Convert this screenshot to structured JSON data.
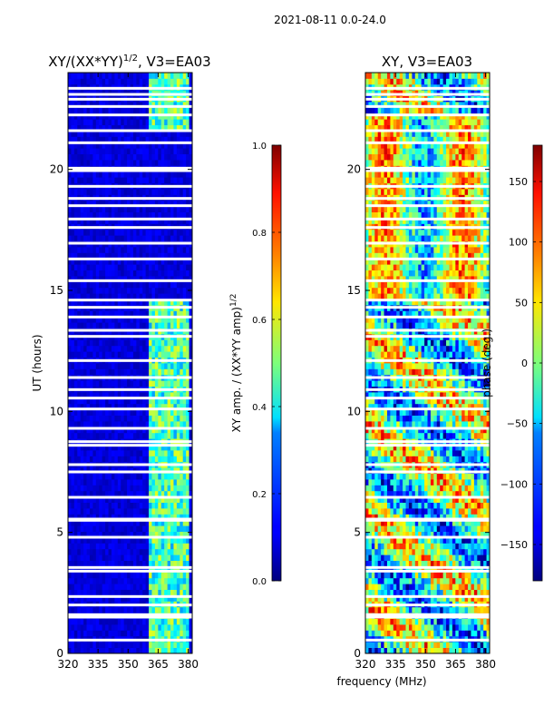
{
  "suptitle": "2021-08-11 0.0-24.0",
  "chart_data": [
    {
      "type": "heatmap",
      "title_prefix": "XY/(XX*YY)",
      "title_exp": "1/2",
      "title_suffix": ", V3=EA03",
      "xlabel": "",
      "ylabel": "UT (hours)",
      "xlim": [
        320,
        382
      ],
      "ylim": [
        0,
        24
      ],
      "xticks": [
        "320",
        "335",
        "350",
        "365",
        "380"
      ],
      "xtick_values": [
        320,
        335,
        350,
        365,
        380
      ],
      "yticks": [
        "0",
        "5",
        "10",
        "15",
        "20"
      ],
      "ytick_values": [
        0,
        5,
        10,
        15,
        20
      ],
      "signal_band_mhz": [
        360,
        380
      ],
      "colorbar": {
        "label_prefix": "XY amp. / (XX*YY amp)",
        "label_exp": "1/2",
        "range": [
          0.0,
          1.0
        ],
        "ticks": [
          "0.0",
          "0.2",
          "0.4",
          "0.6",
          "0.8",
          "1.0"
        ],
        "tick_values": [
          0.0,
          0.2,
          0.4,
          0.6,
          0.8,
          1.0
        ],
        "colormap": "jet"
      }
    },
    {
      "type": "heatmap",
      "title": "XY, V3=EA03",
      "xlabel": "frequency (MHz)",
      "ylabel": "",
      "xlim": [
        320,
        382
      ],
      "ylim": [
        0,
        24
      ],
      "xticks": [
        "320",
        "335",
        "350",
        "365",
        "380"
      ],
      "xtick_values": [
        320,
        335,
        350,
        365,
        380
      ],
      "yticks": [
        "0",
        "5",
        "10",
        "15",
        "20"
      ],
      "ytick_values": [
        0,
        5,
        10,
        15,
        20
      ],
      "colorbar": {
        "label": "phase (deg.)",
        "range": [
          -180,
          180
        ],
        "ticks": [
          "−150",
          "−100",
          "−50",
          "0",
          "50",
          "100",
          "150"
        ],
        "tick_values": [
          -150,
          -100,
          -50,
          0,
          50,
          100,
          150
        ],
        "colormap": "jet"
      }
    }
  ],
  "flagged_hours": [
    0.55,
    1.5,
    1.6,
    2.0,
    2.35,
    3.4,
    3.55,
    4.8,
    5.5,
    5.55,
    6.45,
    7.5,
    7.8,
    8.6,
    8.75,
    9.3,
    10.1,
    10.55,
    10.9,
    11.4,
    12.1,
    13.1,
    13.35,
    13.9,
    14.3,
    14.6,
    15.4,
    16.3,
    16.95,
    17.6,
    17.95,
    18.5,
    18.8,
    19.3,
    19.95,
    20.05,
    21.1,
    21.6,
    22.25,
    22.6,
    22.9,
    23.1,
    23.35
  ]
}
